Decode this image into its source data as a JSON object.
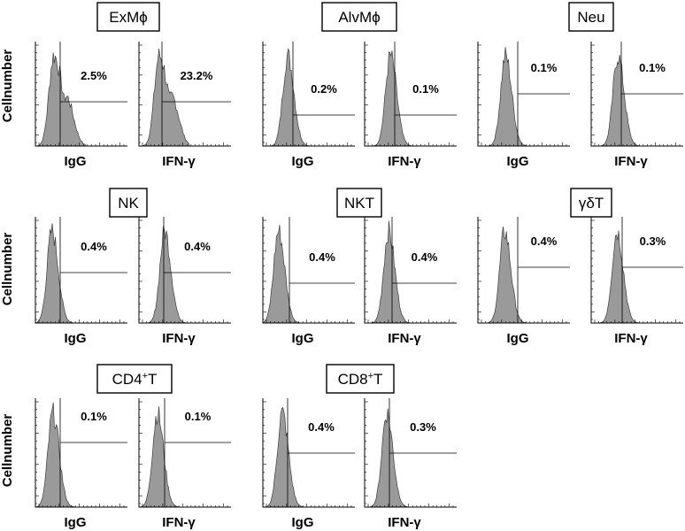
{
  "chart_data": {
    "type": "histogram",
    "y_axis_label": "Cellnumber",
    "x_labels": [
      "IgG",
      "IFN-γ"
    ],
    "panels": [
      {
        "title": "ExMϕ",
        "percentages": [
          "2.5%",
          "23.2%"
        ]
      },
      {
        "title": "AlvMϕ",
        "percentages": [
          "0.2%",
          "0.1%"
        ]
      },
      {
        "title": "Neu",
        "percentages": [
          "0.1%",
          "0.1%"
        ]
      },
      {
        "title": "NK",
        "percentages": [
          "0.4%",
          "0.4%"
        ]
      },
      {
        "title": "NKT",
        "percentages": [
          "0.4%",
          "0.4%"
        ]
      },
      {
        "title": "γδT",
        "percentages": [
          "0.4%",
          "0.3%"
        ]
      },
      {
        "title": "CD4+T",
        "title_base": "CD4",
        "title_sup": "+",
        "title_end": "T",
        "percentages": [
          "0.1%",
          "0.1%"
        ]
      },
      {
        "title": "CD8+T",
        "title_base": "CD8",
        "title_sup": "+",
        "title_end": "T",
        "percentages": [
          "0.4%",
          "0.3%"
        ]
      }
    ]
  },
  "colors": {
    "histogram_fill": "#9a9a9a",
    "histogram_stroke": "#3c3c3c",
    "frame": "#000000"
  }
}
